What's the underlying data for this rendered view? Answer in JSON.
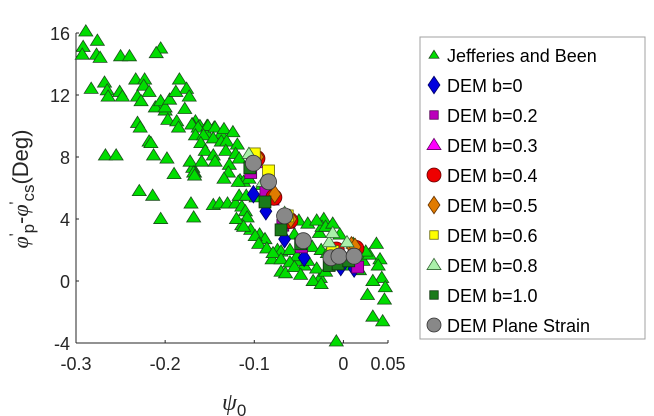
{
  "chart_data": {
    "type": "scatter",
    "title": "",
    "xlabel": "ψ",
    "xlabel_sub": "0",
    "ylabel_parts": {
      "phi": "φ",
      "prime": "'",
      "p": "p",
      "dash": "-",
      "cs": "cs",
      "unit": "(Deg)"
    },
    "xlim": [
      -0.3,
      0.05
    ],
    "ylim": [
      -4,
      16
    ],
    "xticks": [
      -0.3,
      -0.2,
      -0.1,
      0,
      0.05
    ],
    "xtick_labels": [
      "-0.3",
      "-0.2",
      "-0.1",
      "0",
      "0.05"
    ],
    "yticks": [
      -4,
      0,
      4,
      8,
      12,
      16
    ],
    "ytick_labels": [
      "-4",
      "0",
      "4",
      "8",
      "12",
      "16"
    ],
    "grid": false,
    "legend_position": "outside-right",
    "series": [
      {
        "name": "Jefferies and Been",
        "marker": "triangle",
        "color": "#00dd00",
        "edge": "#1a4d1a",
        "points": [
          [
            -0.289,
            16.1
          ],
          [
            -0.276,
            15.5
          ],
          [
            -0.292,
            15.1
          ],
          [
            -0.293,
            14.6
          ],
          [
            -0.277,
            14.6
          ],
          [
            -0.273,
            14.4
          ],
          [
            -0.25,
            14.5
          ],
          [
            -0.24,
            14.5
          ],
          [
            -0.205,
            15.0
          ],
          [
            -0.21,
            14.7
          ],
          [
            -0.233,
            13.0
          ],
          [
            -0.223,
            13.0
          ],
          [
            -0.184,
            13.0
          ],
          [
            -0.224,
            12.6
          ],
          [
            -0.218,
            12.2
          ],
          [
            -0.283,
            12.4
          ],
          [
            -0.268,
            12.8
          ],
          [
            -0.265,
            12.3
          ],
          [
            -0.264,
            11.9
          ],
          [
            -0.251,
            12.2
          ],
          [
            -0.248,
            11.9
          ],
          [
            -0.176,
            12.4
          ],
          [
            -0.173,
            11.9
          ],
          [
            -0.206,
            11.3
          ],
          [
            -0.2,
            11.0
          ],
          [
            -0.197,
            10.4
          ],
          [
            -0.187,
            10.3
          ],
          [
            -0.166,
            10.3
          ],
          [
            -0.231,
            10.2
          ],
          [
            -0.228,
            9.9
          ],
          [
            -0.185,
            9.9
          ],
          [
            -0.267,
            8.1
          ],
          [
            -0.255,
            8.1
          ],
          [
            -0.218,
            9.0
          ],
          [
            -0.216,
            8.9
          ],
          [
            -0.213,
            8.1
          ],
          [
            -0.198,
            7.9
          ],
          [
            -0.19,
            6.9
          ],
          [
            -0.229,
            5.8
          ],
          [
            -0.214,
            5.5
          ],
          [
            -0.169,
            7.3
          ],
          [
            -0.167,
            7.0
          ],
          [
            -0.171,
            5.0
          ],
          [
            -0.168,
            4.1
          ],
          [
            -0.231,
            11.9
          ],
          [
            -0.227,
            11.6
          ],
          [
            -0.211,
            11.2
          ],
          [
            -0.205,
            11.6
          ],
          [
            -0.2,
            11.2
          ],
          [
            -0.195,
            11.7
          ],
          [
            -0.188,
            12.2
          ],
          [
            -0.178,
            11.1
          ],
          [
            -0.169,
            10.1
          ],
          [
            -0.161,
            10.0
          ],
          [
            -0.153,
            10.0
          ],
          [
            -0.145,
            9.9
          ],
          [
            -0.153,
            9.5
          ],
          [
            -0.137,
            9.5
          ],
          [
            -0.17,
            10.1
          ],
          [
            -0.163,
            9.9
          ],
          [
            -0.152,
            10.0
          ],
          [
            -0.144,
            9.9
          ],
          [
            -0.134,
            9.8
          ],
          [
            -0.124,
            9.6
          ],
          [
            -0.166,
            9.4
          ],
          [
            -0.157,
            9.4
          ],
          [
            -0.146,
            9.2
          ],
          [
            -0.137,
            9.0
          ],
          [
            -0.131,
            9.0
          ],
          [
            -0.119,
            8.8
          ],
          [
            -0.16,
            8.9
          ],
          [
            -0.155,
            8.4
          ],
          [
            -0.146,
            8.1
          ],
          [
            -0.132,
            8.4
          ],
          [
            -0.121,
            8.2
          ],
          [
            -0.172,
            7.7
          ],
          [
            -0.159,
            7.7
          ],
          [
            -0.144,
            7.7
          ],
          [
            -0.128,
            7.5
          ],
          [
            -0.117,
            7.9
          ],
          [
            -0.168,
            7.0
          ],
          [
            -0.167,
            6.8
          ],
          [
            -0.129,
            7.0
          ],
          [
            -0.134,
            6.6
          ],
          [
            -0.116,
            6.5
          ],
          [
            -0.112,
            6.4
          ],
          [
            -0.106,
            6.6
          ],
          [
            -0.1,
            7.9
          ],
          [
            -0.205,
            4.0
          ],
          [
            -0.146,
            4.9
          ],
          [
            -0.139,
            5.0
          ],
          [
            -0.13,
            5.0
          ],
          [
            -0.121,
            5.0
          ],
          [
            -0.114,
            4.8
          ],
          [
            -0.11,
            4.5
          ],
          [
            -0.108,
            4.1
          ],
          [
            -0.117,
            5.5
          ],
          [
            -0.109,
            5.5
          ],
          [
            -0.098,
            5.4
          ],
          [
            -0.091,
            6.2
          ],
          [
            -0.118,
            6.4
          ],
          [
            -0.114,
            3.6
          ],
          [
            -0.104,
            3.3
          ],
          [
            -0.094,
            3.0
          ],
          [
            -0.088,
            2.7
          ],
          [
            -0.074,
            2.0
          ],
          [
            -0.07,
            1.9
          ],
          [
            -0.044,
            1.0
          ],
          [
            -0.05,
            1.3
          ],
          [
            -0.07,
            0.6
          ],
          [
            -0.065,
            0.5
          ],
          [
            -0.08,
            1.4
          ],
          [
            -0.026,
            0.2
          ],
          [
            -0.011,
            1.0
          ],
          [
            -0.008,
            -3.9
          ],
          [
            0.037,
            2.4
          ],
          [
            0.041,
            1.4
          ],
          [
            0.039,
            1.0
          ],
          [
            0.043,
            0.2
          ],
          [
            0.033,
            0.0
          ],
          [
            0.047,
            -0.4
          ],
          [
            0.046,
            -1.2
          ],
          [
            0.027,
            -0.9
          ],
          [
            0.033,
            -2.3
          ],
          [
            0.044,
            -2.6
          ],
          [
            0.011,
            2.4
          ],
          [
            0.0,
            1.0
          ],
          [
            -0.022,
            4.0
          ],
          [
            -0.027,
            3.1
          ],
          [
            -0.024,
            3.5
          ],
          [
            -0.06,
            4.2
          ],
          [
            -0.05,
            3.9
          ],
          [
            -0.04,
            3.7
          ],
          [
            -0.03,
            3.9
          ],
          [
            -0.02,
            3.5
          ],
          [
            -0.012,
            3.7
          ],
          [
            -0.004,
            3.0
          ],
          [
            -0.055,
            3.0
          ],
          [
            -0.045,
            2.5
          ],
          [
            -0.035,
            2.2
          ],
          [
            -0.025,
            2.0
          ],
          [
            -0.018,
            1.8
          ],
          [
            -0.01,
            1.5
          ],
          [
            -0.06,
            2.0
          ],
          [
            -0.052,
            1.6
          ],
          [
            -0.04,
            1.3
          ],
          [
            -0.03,
            0.8
          ],
          [
            -0.02,
            0.6
          ],
          [
            -0.12,
            4.0
          ],
          [
            -0.112,
            3.5
          ],
          [
            -0.099,
            2.9
          ],
          [
            -0.095,
            2.4
          ],
          [
            -0.086,
            2.1
          ],
          [
            -0.079,
            1.8
          ],
          [
            -0.07,
            1.4
          ],
          [
            -0.06,
            1.2
          ],
          [
            -0.055,
            0.9
          ],
          [
            -0.048,
            0.4
          ],
          [
            -0.034,
            0.0
          ],
          [
            -0.025,
            -0.2
          ],
          [
            0.018,
            0.7
          ],
          [
            0.022,
            1.3
          ],
          [
            0.029,
            1.7
          ],
          [
            0.018,
            2.0
          ],
          [
            0.025,
            1.9
          ]
        ]
      },
      {
        "name": "DEM b=0",
        "marker": "diamond",
        "color": "#0000dd",
        "edge": "#000066",
        "points": [
          [
            -0.101,
            5.6
          ],
          [
            -0.087,
            4.5
          ],
          [
            -0.066,
            2.7
          ],
          [
            -0.044,
            1.5
          ],
          [
            -0.003,
            0.9
          ],
          [
            0.012,
            0.8
          ]
        ]
      },
      {
        "name": "DEM b=0.2",
        "marker": "square",
        "color": "#bb00bb",
        "edge": "#550055",
        "points": [
          [
            -0.104,
            7.0
          ],
          [
            -0.087,
            5.8
          ],
          [
            -0.068,
            3.6
          ],
          [
            -0.047,
            2.2
          ],
          [
            0.016,
            0.9
          ]
        ]
      },
      {
        "name": "DEM b=0.3",
        "marker": "triangle",
        "color": "#ff00ff",
        "edge": "#660066",
        "points": [
          [
            -0.098,
            7.6
          ],
          [
            -0.08,
            5.2
          ],
          [
            -0.062,
            3.7
          ],
          [
            0.013,
            1.9
          ]
        ]
      },
      {
        "name": "DEM b=0.4",
        "marker": "circle",
        "color": "#ee0000",
        "edge": "#660000",
        "points": [
          [
            -0.097,
            7.9
          ],
          [
            -0.078,
            5.4
          ],
          [
            -0.06,
            3.9
          ],
          [
            -0.008,
            2.0
          ],
          [
            0.014,
            2.1
          ]
        ]
      },
      {
        "name": "DEM b=0.5",
        "marker": "diamond",
        "color": "#e07b00",
        "edge": "#663300",
        "points": [
          [
            -0.096,
            8.0
          ],
          [
            -0.077,
            5.6
          ],
          [
            -0.059,
            4.0
          ],
          [
            0.009,
            2.3
          ],
          [
            0.013,
            2.2
          ]
        ]
      },
      {
        "name": "DEM b=0.6",
        "marker": "square",
        "color": "#ffff00",
        "edge": "#666600",
        "points": [
          [
            -0.1,
            8.2
          ],
          [
            -0.084,
            7.1
          ],
          [
            -0.063,
            4.2
          ],
          [
            -0.012,
            1.9
          ]
        ]
      },
      {
        "name": "DEM b=0.8",
        "marker": "triangle",
        "color": "#aaf0aa",
        "edge": "#336633",
        "points": [
          [
            -0.106,
            8.2
          ],
          [
            -0.09,
            6.4
          ],
          [
            -0.066,
            4.4
          ],
          [
            -0.016,
            2.5
          ],
          [
            -0.012,
            3.1
          ],
          [
            0.004,
            2.5
          ]
        ]
      },
      {
        "name": "DEM b=1.0",
        "marker": "square",
        "color": "#1a7a1a",
        "edge": "#0a330a",
        "points": [
          [
            -0.105,
            7.3
          ],
          [
            -0.088,
            5.1
          ],
          [
            -0.07,
            3.3
          ],
          [
            -0.048,
            2.4
          ],
          [
            -0.016,
            1.0
          ],
          [
            -0.006,
            1.1
          ],
          [
            0.006,
            1.3
          ]
        ]
      },
      {
        "name": "DEM Plane Strain",
        "marker": "circle",
        "color": "#888888",
        "edge": "#333333",
        "points": [
          [
            -0.101,
            7.6
          ],
          [
            -0.084,
            6.4
          ],
          [
            -0.066,
            4.2
          ],
          [
            -0.045,
            2.6
          ],
          [
            -0.014,
            1.5
          ],
          [
            -0.005,
            1.6
          ],
          [
            0.012,
            1.6
          ]
        ]
      }
    ]
  }
}
